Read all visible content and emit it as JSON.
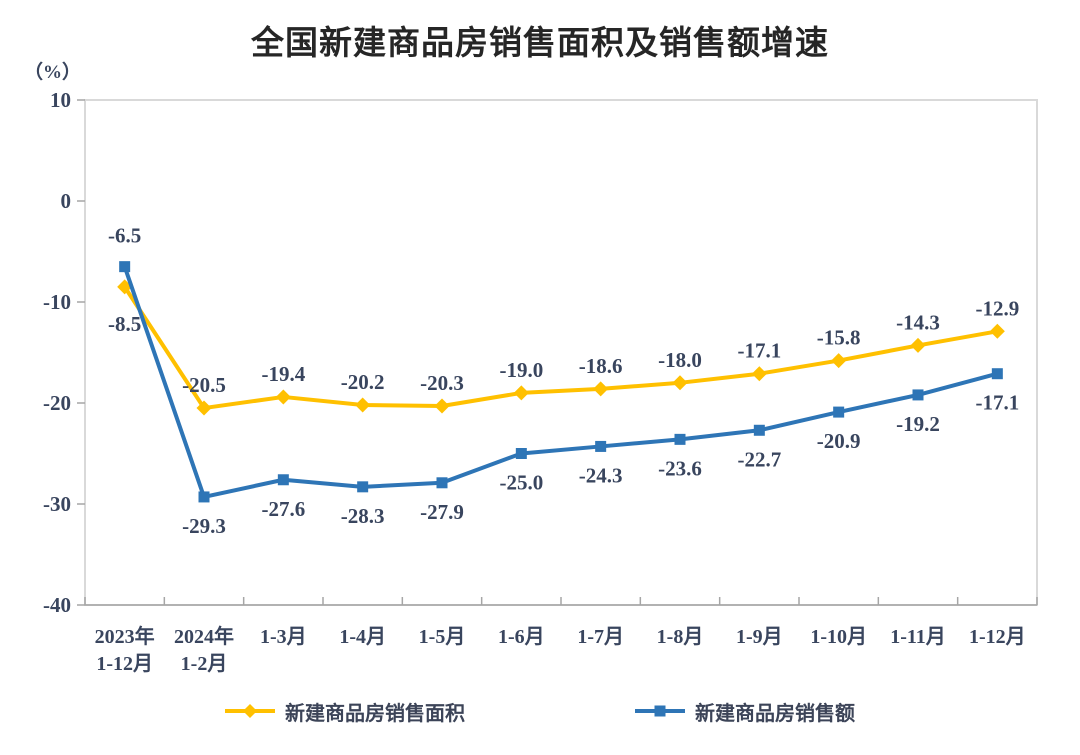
{
  "title": "全国新建商品房销售面积及销售额增速",
  "unit_label": "（%）",
  "chart_data": {
    "type": "line",
    "categories": [
      "2023年\n1-12月",
      "2024年\n1-2月",
      "1-3月",
      "1-4月",
      "1-5月",
      "1-6月",
      "1-7月",
      "1-8月",
      "1-9月",
      "1-10月",
      "1-11月",
      "1-12月"
    ],
    "series": [
      {
        "name": "新建商品房销售面积",
        "color": "#FFC000",
        "marker": "diamond",
        "values": [
          -8.5,
          -20.5,
          -19.4,
          -20.2,
          -20.3,
          -19.0,
          -18.6,
          -18.0,
          -17.1,
          -15.8,
          -14.3,
          -12.9
        ],
        "label_side": "above",
        "label_side_exceptions": {
          "0": "below-far"
        }
      },
      {
        "name": "新建商品房销售额",
        "color": "#2E75B6",
        "marker": "square",
        "values": [
          -6.5,
          -29.3,
          -27.6,
          -28.3,
          -27.9,
          -25.0,
          -24.3,
          -23.6,
          -22.7,
          -20.9,
          -19.2,
          -17.1
        ],
        "label_side": "below",
        "label_side_exceptions": {
          "0": "above-far"
        }
      }
    ],
    "ylim": [
      -40,
      10
    ],
    "yticks": [
      10,
      0,
      -10,
      -20,
      -30,
      -40
    ],
    "grid": false,
    "legend_position": "bottom",
    "data_label_decimals": 1,
    "colors": {
      "plot_border": "#D9D9D9",
      "axis": "#A6A6A6",
      "label_text": "#39455e",
      "title_text": "#262626"
    }
  }
}
